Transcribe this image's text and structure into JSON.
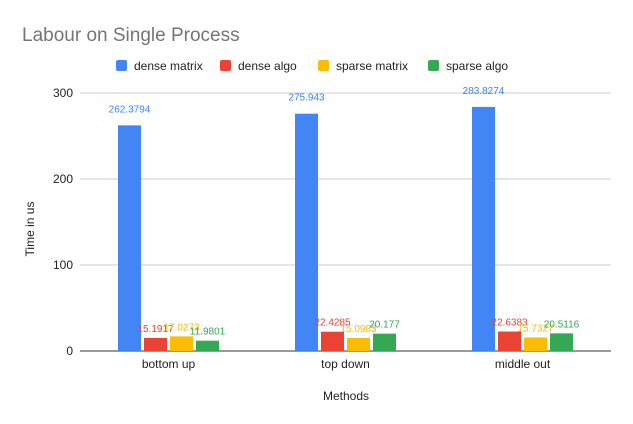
{
  "chart_data": {
    "type": "bar",
    "title": "Labour on Single Process",
    "xlabel": "Methods",
    "ylabel": "Time in us",
    "categories": [
      "bottom up",
      "top down",
      "middle out"
    ],
    "series": [
      {
        "name": "dense matrix",
        "color": "#4285F4",
        "values": [
          262.3794,
          275.943,
          283.8274
        ],
        "labels": [
          "262.3794",
          "275.943",
          "283.8274"
        ]
      },
      {
        "name": "dense algo",
        "color": "#EA4335",
        "values": [
          15.1917,
          22.4285,
          22.6383
        ],
        "labels": [
          "15.1917",
          "22.4285",
          "22.6383"
        ]
      },
      {
        "name": "sparse matrix",
        "color": "#FBBC04",
        "values": [
          17.0273,
          15.0983,
          15.7327
        ],
        "labels": [
          "17.0273",
          "15.0983",
          "15.7327"
        ]
      },
      {
        "name": "sparse algo",
        "color": "#34A853",
        "values": [
          11.9801,
          20.177,
          20.5116
        ],
        "labels": [
          "11.9801",
          "20.177",
          "20.5116"
        ]
      }
    ],
    "ylim": [
      0,
      300
    ],
    "yticks": [
      0,
      100,
      200,
      300
    ],
    "grid": true,
    "legend_position": "top"
  }
}
